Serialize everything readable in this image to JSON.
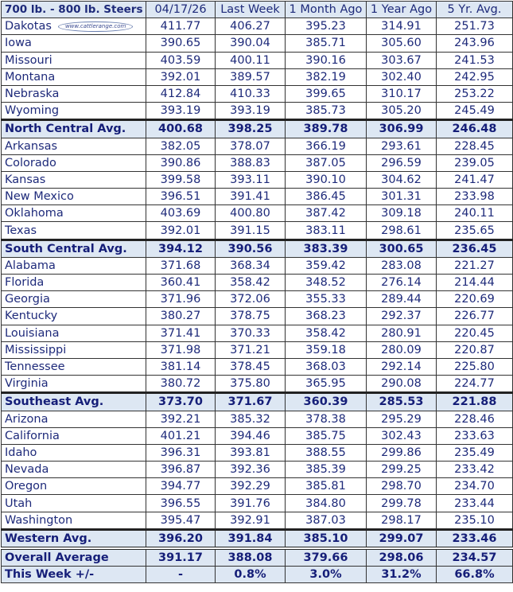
{
  "header": [
    "700 lb. - 800 lb. Steers",
    "04/17/26",
    "Last Week",
    "1 Month Ago",
    "1 Year Ago",
    "5 Yr. Avg."
  ],
  "logo_text": "www.cattlerange.com",
  "rows": [
    {
      "type": "state",
      "cells": [
        "Dakotas",
        "411.77",
        "406.27",
        "395.23",
        "314.91",
        "251.73"
      ]
    },
    {
      "type": "state",
      "cells": [
        "Iowa",
        "390.65",
        "390.04",
        "385.71",
        "305.60",
        "243.96"
      ]
    },
    {
      "type": "state",
      "cells": [
        "Missouri",
        "403.59",
        "400.11",
        "390.16",
        "303.67",
        "241.53"
      ]
    },
    {
      "type": "state",
      "cells": [
        "Montana",
        "392.01",
        "389.57",
        "382.19",
        "302.40",
        "242.95"
      ]
    },
    {
      "type": "state",
      "cells": [
        "Nebraska",
        "412.84",
        "410.33",
        "399.65",
        "310.17",
        "253.22"
      ]
    },
    {
      "type": "state",
      "cells": [
        "Wyoming",
        "393.19",
        "393.19",
        "385.73",
        "305.20",
        "245.49"
      ]
    },
    {
      "type": "avg",
      "cells": [
        "North Central Avg.",
        "400.68",
        "398.25",
        "389.78",
        "306.99",
        "246.48"
      ]
    },
    {
      "type": "state",
      "cells": [
        "Arkansas",
        "382.05",
        "378.07",
        "366.19",
        "293.61",
        "228.45"
      ]
    },
    {
      "type": "state",
      "cells": [
        "Colorado",
        "390.86",
        "388.83",
        "387.05",
        "296.59",
        "239.05"
      ]
    },
    {
      "type": "state",
      "cells": [
        "Kansas",
        "399.58",
        "393.11",
        "390.10",
        "304.62",
        "241.47"
      ]
    },
    {
      "type": "state",
      "cells": [
        "New Mexico",
        "396.51",
        "391.41",
        "386.45",
        "301.31",
        "233.98"
      ]
    },
    {
      "type": "state",
      "cells": [
        "Oklahoma",
        "403.69",
        "400.80",
        "387.42",
        "309.18",
        "240.11"
      ]
    },
    {
      "type": "state",
      "cells": [
        "Texas",
        "392.01",
        "391.15",
        "383.11",
        "298.61",
        "235.65"
      ]
    },
    {
      "type": "avg",
      "cells": [
        "South Central Avg.",
        "394.12",
        "390.56",
        "383.39",
        "300.65",
        "236.45"
      ]
    },
    {
      "type": "state",
      "cells": [
        "Alabama",
        "371.68",
        "368.34",
        "359.42",
        "283.08",
        "221.27"
      ]
    },
    {
      "type": "state",
      "cells": [
        "Florida",
        "360.41",
        "358.42",
        "348.52",
        "276.14",
        "214.44"
      ]
    },
    {
      "type": "state",
      "cells": [
        "Georgia",
        "371.96",
        "372.06",
        "355.33",
        "289.44",
        "220.69"
      ]
    },
    {
      "type": "state",
      "cells": [
        "Kentucky",
        "380.27",
        "378.75",
        "368.23",
        "292.37",
        "226.77"
      ]
    },
    {
      "type": "state",
      "cells": [
        "Louisiana",
        "371.41",
        "370.33",
        "358.42",
        "280.91",
        "220.45"
      ]
    },
    {
      "type": "state",
      "cells": [
        "Mississippi",
        "371.98",
        "371.21",
        "359.18",
        "280.09",
        "220.87"
      ]
    },
    {
      "type": "state",
      "cells": [
        "Tennessee",
        "381.14",
        "378.45",
        "368.03",
        "292.14",
        "225.80"
      ]
    },
    {
      "type": "state",
      "cells": [
        "Virginia",
        "380.72",
        "375.80",
        "365.95",
        "290.08",
        "224.77"
      ]
    },
    {
      "type": "avg",
      "cells": [
        "Southeast Avg.",
        "373.70",
        "371.67",
        "360.39",
        "285.53",
        "221.88"
      ]
    },
    {
      "type": "state",
      "cells": [
        "Arizona",
        "392.21",
        "385.32",
        "378.38",
        "295.29",
        "228.46"
      ]
    },
    {
      "type": "state",
      "cells": [
        "California",
        "401.21",
        "394.46",
        "385.75",
        "302.43",
        "233.63"
      ]
    },
    {
      "type": "state",
      "cells": [
        "Idaho",
        "396.31",
        "393.81",
        "388.55",
        "299.86",
        "235.49"
      ]
    },
    {
      "type": "state",
      "cells": [
        "Nevada",
        "396.87",
        "392.36",
        "385.39",
        "299.25",
        "233.42"
      ]
    },
    {
      "type": "state",
      "cells": [
        "Oregon",
        "394.77",
        "392.29",
        "385.81",
        "298.70",
        "234.70"
      ]
    },
    {
      "type": "state",
      "cells": [
        "Utah",
        "396.55",
        "391.76",
        "384.80",
        "299.78",
        "233.44"
      ]
    },
    {
      "type": "state",
      "cells": [
        "Washington",
        "395.47",
        "392.91",
        "387.03",
        "298.17",
        "235.10"
      ]
    },
    {
      "type": "avg",
      "cells": [
        "Western Avg.",
        "396.20",
        "391.84",
        "385.10",
        "299.07",
        "233.46"
      ]
    },
    {
      "type": "overall",
      "cells": [
        "Overall Average",
        "391.17",
        "388.08",
        "379.66",
        "298.06",
        "234.57"
      ]
    },
    {
      "type": "change",
      "cells": [
        "This Week +/-",
        "-",
        "0.8%",
        "3.0%",
        "31.2%",
        "66.8%"
      ]
    }
  ]
}
